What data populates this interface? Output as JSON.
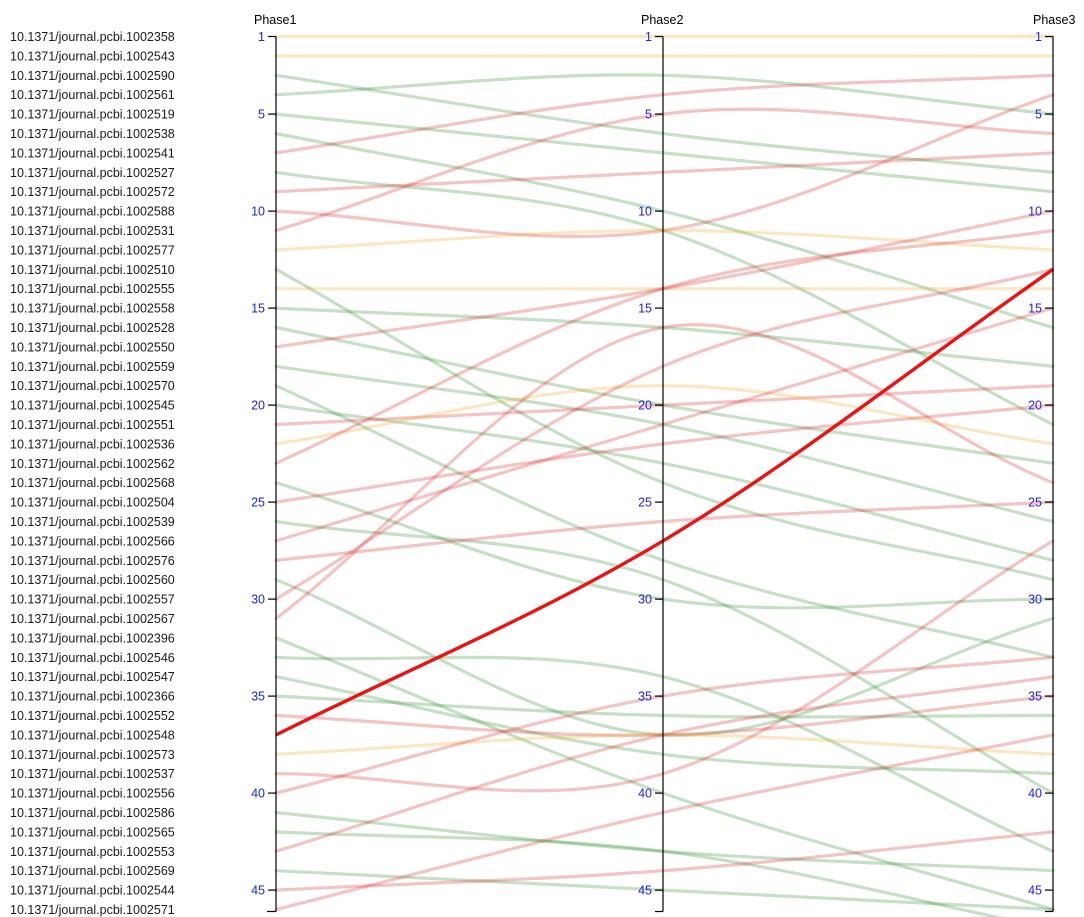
{
  "chart_data": {
    "type": "line",
    "axes": [
      "Phase1",
      "Phase2",
      "Phase3"
    ],
    "rank_range": [
      1,
      46
    ],
    "ticks": [
      1,
      5,
      10,
      15,
      20,
      25,
      30,
      35,
      40,
      45
    ],
    "tick_label_color": "#2222dd",
    "colors": {
      "improved": "#dd2222",
      "declined": "#2e8b2e",
      "stable": "#f5a623",
      "highlight": "#ee1111"
    },
    "highlighted_identifier": "10.1371/journal.pcbi.1002548",
    "series": [
      {
        "name": "10.1371/journal.pcbi.1002358",
        "values": [
          1,
          1,
          1
        ]
      },
      {
        "name": "10.1371/journal.pcbi.1002543",
        "values": [
          2,
          2,
          2
        ]
      },
      {
        "name": "10.1371/journal.pcbi.1002590",
        "values": [
          3,
          6,
          8
        ]
      },
      {
        "name": "10.1371/journal.pcbi.1002561",
        "values": [
          4,
          3,
          5
        ]
      },
      {
        "name": "10.1371/journal.pcbi.1002519",
        "values": [
          5,
          7,
          9
        ]
      },
      {
        "name": "10.1371/journal.pcbi.1002538",
        "values": [
          6,
          10,
          16
        ]
      },
      {
        "name": "10.1371/journal.pcbi.1002541",
        "values": [
          7,
          4,
          3
        ]
      },
      {
        "name": "10.1371/journal.pcbi.1002527",
        "values": [
          8,
          11,
          21
        ]
      },
      {
        "name": "10.1371/journal.pcbi.1002572",
        "values": [
          9,
          8,
          7
        ]
      },
      {
        "name": "10.1371/journal.pcbi.1002588",
        "values": [
          10,
          11,
          4
        ]
      },
      {
        "name": "10.1371/journal.pcbi.1002531",
        "values": [
          11,
          5,
          6
        ]
      },
      {
        "name": "10.1371/journal.pcbi.1002577",
        "values": [
          12,
          11,
          12
        ]
      },
      {
        "name": "10.1371/journal.pcbi.1002510",
        "values": [
          13,
          24,
          29
        ]
      },
      {
        "name": "10.1371/journal.pcbi.1002555",
        "values": [
          14,
          14,
          14
        ]
      },
      {
        "name": "10.1371/journal.pcbi.1002558",
        "values": [
          15,
          16,
          18
        ]
      },
      {
        "name": "10.1371/journal.pcbi.1002528",
        "values": [
          16,
          20,
          23
        ]
      },
      {
        "name": "10.1371/journal.pcbi.1002550",
        "values": [
          17,
          14,
          10
        ]
      },
      {
        "name": "10.1371/journal.pcbi.1002559",
        "values": [
          18,
          21,
          26
        ]
      },
      {
        "name": "10.1371/journal.pcbi.1002570",
        "values": [
          19,
          28,
          33
        ]
      },
      {
        "name": "10.1371/journal.pcbi.1002545",
        "values": [
          20,
          23,
          28
        ]
      },
      {
        "name": "10.1371/journal.pcbi.1002551",
        "values": [
          21,
          20,
          19
        ]
      },
      {
        "name": "10.1371/journal.pcbi.1002536",
        "values": [
          22,
          19,
          22
        ]
      },
      {
        "name": "10.1371/journal.pcbi.1002562",
        "values": [
          23,
          14,
          11
        ]
      },
      {
        "name": "10.1371/journal.pcbi.1002568",
        "values": [
          24,
          30,
          30
        ]
      },
      {
        "name": "10.1371/journal.pcbi.1002504",
        "values": [
          25,
          22,
          20
        ]
      },
      {
        "name": "10.1371/journal.pcbi.1002539",
        "values": [
          26,
          29,
          40
        ]
      },
      {
        "name": "10.1371/journal.pcbi.1002566",
        "values": [
          27,
          21,
          15
        ]
      },
      {
        "name": "10.1371/journal.pcbi.1002576",
        "values": [
          28,
          26,
          25
        ]
      },
      {
        "name": "10.1371/journal.pcbi.1002560",
        "values": [
          29,
          37,
          31
        ]
      },
      {
        "name": "10.1371/journal.pcbi.1002557",
        "values": [
          30,
          18,
          13
        ]
      },
      {
        "name": "10.1371/journal.pcbi.1002567",
        "values": [
          31,
          16,
          24
        ]
      },
      {
        "name": "10.1371/journal.pcbi.1002396",
        "values": [
          32,
          40,
          46
        ]
      },
      {
        "name": "10.1371/journal.pcbi.1002546",
        "values": [
          33,
          34,
          43
        ]
      },
      {
        "name": "10.1371/journal.pcbi.1002547",
        "values": [
          34,
          38,
          39
        ]
      },
      {
        "name": "10.1371/journal.pcbi.1002366",
        "values": [
          35,
          36,
          36
        ]
      },
      {
        "name": "10.1371/journal.pcbi.1002548",
        "values": [
          37,
          27,
          13
        ]
      },
      {
        "name": "10.1371/journal.pcbi.1002552",
        "values": [
          36,
          37,
          35
        ]
      },
      {
        "name": "10.1371/journal.pcbi.1002573",
        "values": [
          38,
          37,
          38
        ]
      },
      {
        "name": "10.1371/journal.pcbi.1002537",
        "values": [
          39,
          39,
          27
        ]
      },
      {
        "name": "10.1371/journal.pcbi.1002556",
        "values": [
          40,
          35,
          33
        ]
      },
      {
        "name": "10.1371/journal.pcbi.1002586",
        "values": [
          41,
          43,
          44
        ]
      },
      {
        "name": "10.1371/journal.pcbi.1002565",
        "values": [
          42,
          43,
          47
        ]
      },
      {
        "name": "10.1371/journal.pcbi.1002553",
        "values": [
          43,
          37,
          34
        ]
      },
      {
        "name": "10.1371/journal.pcbi.1002569",
        "values": [
          44,
          45,
          46
        ]
      },
      {
        "name": "10.1371/journal.pcbi.1002544",
        "values": [
          45,
          44,
          42
        ]
      },
      {
        "name": "10.1371/journal.pcbi.1002571",
        "values": [
          46,
          41,
          37
        ]
      }
    ]
  }
}
